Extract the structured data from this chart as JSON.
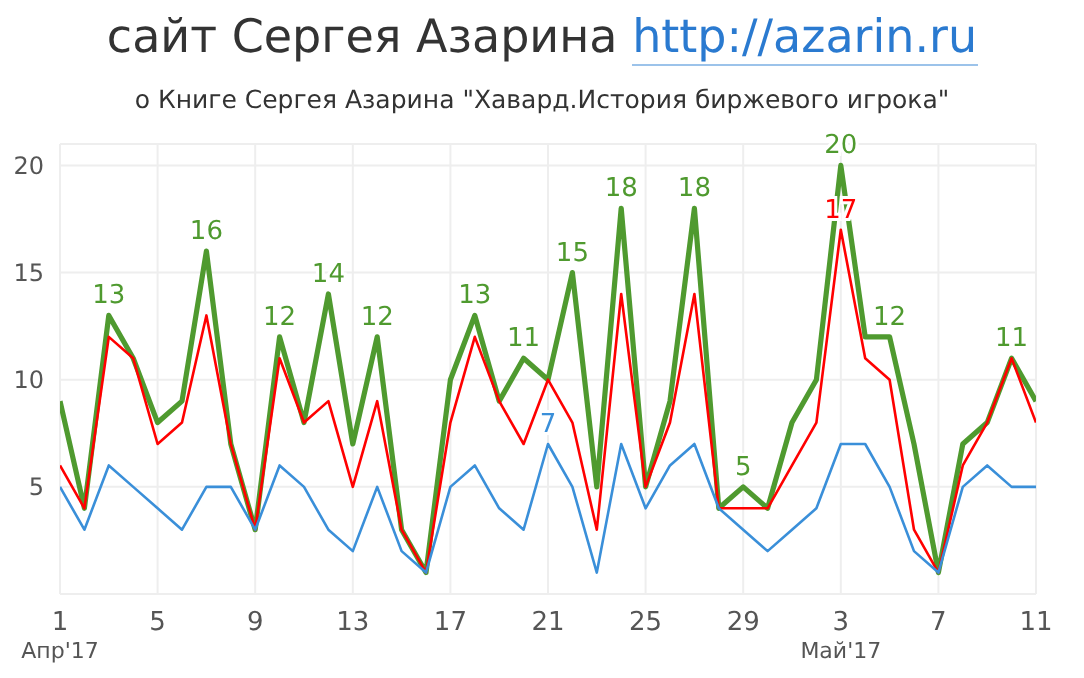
{
  "chart_data": {
    "type": "line",
    "title": "сайт Сергея Азарина http://azarin.ru",
    "subtitle": "о Книге Сергея Азарина \"Хавард.История биржевого игрока\"",
    "x": [
      "2017-04-01",
      "2017-04-02",
      "2017-04-03",
      "2017-04-04",
      "2017-04-05",
      "2017-04-06",
      "2017-04-07",
      "2017-04-08",
      "2017-04-09",
      "2017-04-10",
      "2017-04-11",
      "2017-04-12",
      "2017-04-13",
      "2017-04-14",
      "2017-04-15",
      "2017-04-16",
      "2017-04-17",
      "2017-04-18",
      "2017-04-19",
      "2017-04-20",
      "2017-04-21",
      "2017-04-22",
      "2017-04-23",
      "2017-04-24",
      "2017-04-25",
      "2017-04-26",
      "2017-04-27",
      "2017-04-28",
      "2017-04-29",
      "2017-04-30",
      "2017-05-01",
      "2017-05-02",
      "2017-05-03",
      "2017-05-04",
      "2017-05-05",
      "2017-05-06",
      "2017-05-07",
      "2017-05-08",
      "2017-05-09",
      "2017-05-10",
      "2017-05-11"
    ],
    "series": [
      {
        "color": "#4f9a2f",
        "values": [
          9,
          4,
          13,
          11,
          8,
          9,
          16,
          7,
          3,
          12,
          8,
          14,
          7,
          12,
          3,
          1,
          10,
          13,
          9,
          11,
          10,
          15,
          5,
          18,
          5,
          9,
          18,
          4,
          5,
          4,
          8,
          10,
          20,
          12,
          12,
          7,
          1,
          7,
          8,
          11,
          9
        ],
        "value_labels": [
          null,
          null,
          "13",
          null,
          null,
          null,
          "16",
          null,
          null,
          "12",
          null,
          "14",
          null,
          "12",
          null,
          null,
          null,
          "13",
          null,
          "11",
          null,
          "15",
          null,
          "18",
          null,
          null,
          "18",
          null,
          "5",
          null,
          null,
          null,
          "20",
          null,
          "12",
          null,
          null,
          null,
          null,
          "11",
          null
        ]
      },
      {
        "color": "#ff0000",
        "values": [
          6,
          4,
          12,
          11,
          7,
          8,
          13,
          7,
          3,
          11,
          8,
          9,
          5,
          9,
          3,
          1,
          8,
          12,
          9,
          7,
          10,
          8,
          3,
          14,
          5,
          8,
          14,
          4,
          4,
          4,
          6,
          8,
          17,
          11,
          10,
          3,
          1,
          6,
          8,
          11,
          8
        ],
        "value_labels": [
          null,
          null,
          null,
          null,
          null,
          null,
          null,
          null,
          null,
          null,
          null,
          null,
          null,
          null,
          null,
          null,
          null,
          null,
          null,
          null,
          null,
          null,
          null,
          null,
          null,
          null,
          null,
          null,
          null,
          null,
          null,
          null,
          "17",
          null,
          null,
          null,
          null,
          null,
          null,
          null,
          null
        ]
      },
      {
        "color": "#3a8fd9",
        "values": [
          5,
          3,
          6,
          5,
          4,
          3,
          5,
          5,
          3,
          6,
          5,
          3,
          2,
          5,
          2,
          1,
          5,
          6,
          4,
          3,
          7,
          5,
          1,
          7,
          4,
          6,
          7,
          4,
          3,
          2,
          3,
          4,
          7,
          7,
          5,
          2,
          1,
          5,
          6,
          5,
          5
        ],
        "value_labels": [
          null,
          null,
          null,
          null,
          null,
          null,
          null,
          null,
          null,
          null,
          null,
          null,
          null,
          null,
          null,
          null,
          null,
          null,
          null,
          null,
          "7",
          null,
          null,
          null,
          null,
          null,
          null,
          null,
          null,
          null,
          null,
          null,
          null,
          null,
          null,
          null,
          null,
          null,
          null,
          null,
          null
        ]
      }
    ],
    "xlim": [
      "2017-04-01",
      "2017-05-11"
    ],
    "xticks": [
      {
        "value": "2017-04-01",
        "label": "1\nАпр'17"
      },
      {
        "value": "2017-04-05",
        "label": "5"
      },
      {
        "value": "2017-04-09",
        "label": "9"
      },
      {
        "value": "2017-04-13",
        "label": "13"
      },
      {
        "value": "2017-04-17",
        "label": "17"
      },
      {
        "value": "2017-04-21",
        "label": "21"
      },
      {
        "value": "2017-04-25",
        "label": "25"
      },
      {
        "value": "2017-04-29",
        "label": "29"
      },
      {
        "value": "2017-05-03",
        "label": "3\nМай'17"
      },
      {
        "value": "2017-05-07",
        "label": "7"
      },
      {
        "value": "2017-05-11",
        "label": "11"
      }
    ],
    "ylim": [
      0,
      21
    ],
    "yticks": [
      5,
      10,
      15,
      20
    ],
    "grid": true,
    "legend": false,
    "marker": "none",
    "line_style": "solid"
  }
}
